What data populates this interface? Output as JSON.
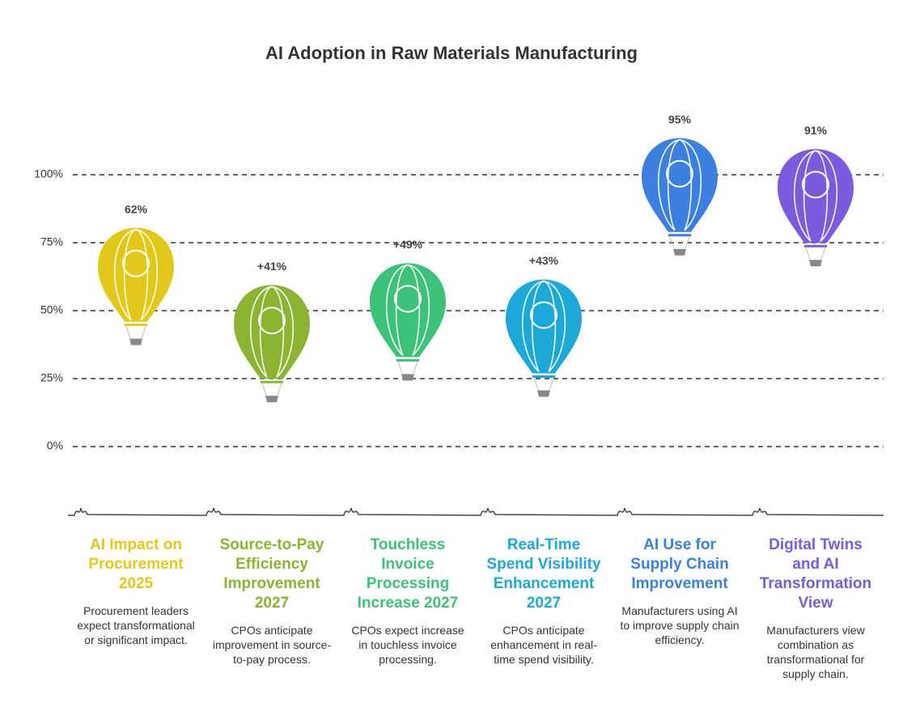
{
  "chart_data": {
    "type": "balloon",
    "title": "AI Adoption in Raw Materials Manufacturing",
    "categories": [
      "AI Impact on Procurement 2025",
      "Source-to-Pay Efficiency Improvement 2027",
      "Touchless Invoice Processing Increase 2027",
      "Real-Time Spend Visibility Enhancement 2027",
      "AI Use for Supply Chain Improvement",
      "Digital Twins and AI Transformation View"
    ],
    "descriptions": [
      "Procurement leaders expect transformational or significant impact.",
      "CPOs anticipate improvement in source-to-pay process.",
      "CPOs expect increase in touchless invoice processing.",
      "CPOs anticipate enhancement in real-time spend visibility.",
      "Manufacturers using AI to improve supply chain efficiency.",
      "Manufacturers view combination as transformational for supply chain."
    ],
    "values": [
      62,
      41,
      49,
      43,
      95,
      91
    ],
    "value_labels": [
      "62%",
      "+41%",
      "+49%",
      "+43%",
      "95%",
      "91%"
    ],
    "colors": [
      "#e2c919",
      "#8cb432",
      "#3dc27a",
      "#1da8da",
      "#3b7fe0",
      "#7a5be0"
    ],
    "ylim": [
      0,
      100
    ],
    "yticks": [
      {
        "value": 0,
        "label": "0%"
      },
      {
        "value": 25,
        "label": "25%"
      },
      {
        "value": 50,
        "label": "50%"
      },
      {
        "value": 75,
        "label": "75%"
      },
      {
        "value": 100,
        "label": "100%"
      }
    ],
    "grid": true
  }
}
